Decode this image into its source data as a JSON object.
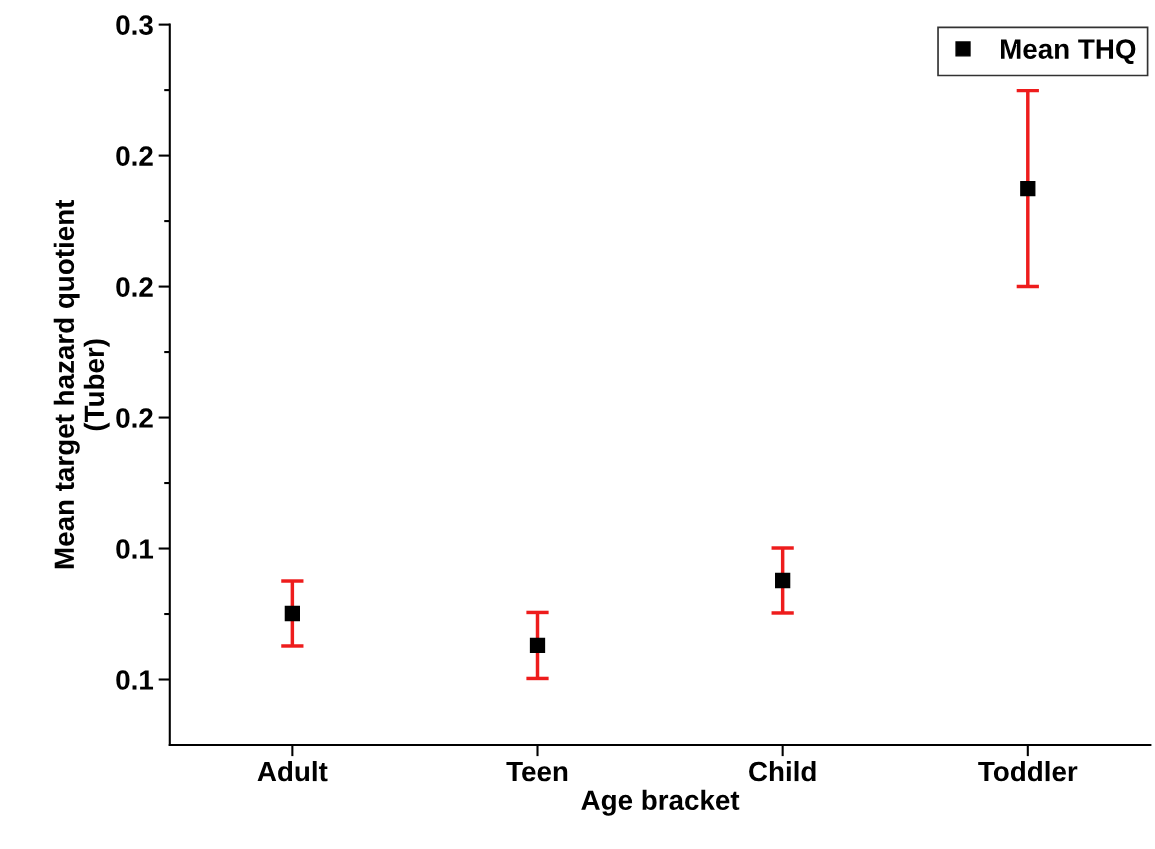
{
  "chart_data": {
    "type": "scatter",
    "xlabel": "Age bracket",
    "ylabel": "Mean target hazard quotient\n(Tuber)",
    "categories": [
      "Adult",
      "Teen",
      "Child",
      "Toddler"
    ],
    "series": [
      {
        "name": "Mean THQ",
        "color": "#000000",
        "values": [
          0.1376,
          0.1315,
          0.1439,
          0.2187
        ],
        "errors": [
          0.0062,
          0.0063,
          0.0062,
          0.0187
        ]
      }
    ],
    "ylim": [
      0.1125,
      0.25
    ],
    "yticks": [
      {
        "value": 0.125,
        "label": "0.1"
      },
      {
        "value": 0.1375,
        "label": null
      },
      {
        "value": 0.15,
        "label": "0.1"
      },
      {
        "value": 0.1625,
        "label": null
      },
      {
        "value": 0.175,
        "label": "0.2"
      },
      {
        "value": 0.1875,
        "label": null
      },
      {
        "value": 0.2,
        "label": "0.2"
      },
      {
        "value": 0.2125,
        "label": null
      },
      {
        "value": 0.225,
        "label": "0.2"
      },
      {
        "value": 0.2375,
        "label": null
      },
      {
        "value": 0.25,
        "label": "0.3"
      }
    ],
    "marker": "square",
    "legend": "top right",
    "grid": false
  }
}
